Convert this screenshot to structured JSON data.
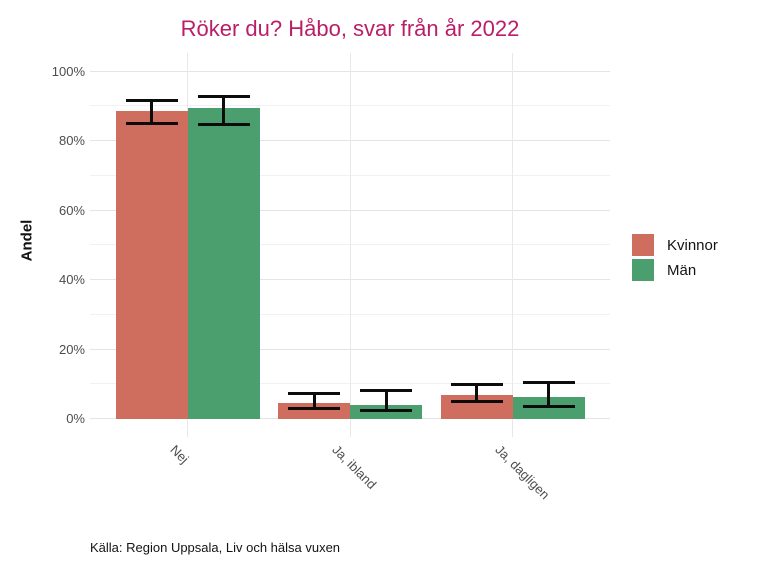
{
  "source_note": "Källa: Region Uppsala, Liv och hälsa vuxen",
  "colors": {
    "title": "#ba1e68",
    "kvinnor": "#cf6d5f",
    "man": "#4b9f6e",
    "axis_text": "#4d4d4d",
    "error_bar": "#0c0c0c",
    "grid_major": "#e3e4e4",
    "grid_minor": "#f0f1f1"
  },
  "chart_data": {
    "type": "bar",
    "title": "Röker du? Håbo, svar från år 2022",
    "xlabel": "",
    "ylabel": "Andel",
    "ylim": [
      0,
      100
    ],
    "grid": "horizontal major at 20% steps, minor at 10% steps; vertical at category centers",
    "legend_position": "right",
    "categories": [
      "Nej",
      "Ja, ibland",
      "Ja, dagligen"
    ],
    "category_slugs": [
      "nej",
      "ja-ibland",
      "ja-dagligen"
    ],
    "yticks": [
      {
        "value": 0,
        "label": "0%"
      },
      {
        "value": 20,
        "label": "20%"
      },
      {
        "value": 40,
        "label": "40%"
      },
      {
        "value": 60,
        "label": "60%"
      },
      {
        "value": 80,
        "label": "80%"
      },
      {
        "value": 100,
        "label": "100%"
      }
    ],
    "yticks_minor": [
      10,
      30,
      50,
      70,
      90
    ],
    "series": [
      {
        "name": "Kvinnor",
        "color": "#cf6d5f",
        "values": [
          88.5,
          4.6,
          6.9
        ],
        "ci_low": [
          84.5,
          2.6,
          4.6
        ],
        "ci_high": [
          92.0,
          7.8,
          10.4
        ]
      },
      {
        "name": "Män",
        "color": "#4b9f6e",
        "values": [
          89.5,
          4.0,
          6.3
        ],
        "ci_low": [
          84.4,
          2.0,
          3.3
        ],
        "ci_high": [
          93.3,
          8.6,
          11.0
        ]
      }
    ]
  }
}
